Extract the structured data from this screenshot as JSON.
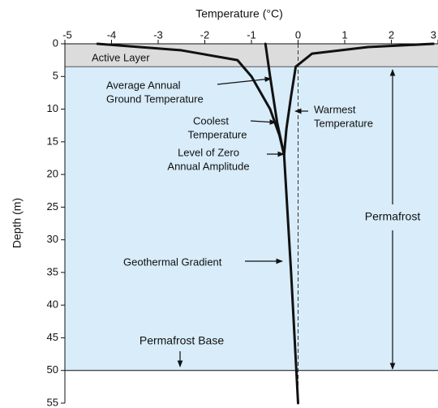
{
  "chart_data": {
    "type": "line",
    "title": "Temperature (°C)",
    "y_label": "Depth (m)",
    "xlim": [
      -5,
      3
    ],
    "xticks": [
      -5,
      -4,
      -3,
      -2,
      -1,
      0,
      1,
      2,
      3
    ],
    "ylim": [
      0,
      55
    ],
    "yticks": [
      0,
      5,
      10,
      15,
      20,
      25,
      30,
      35,
      40,
      45,
      50,
      55
    ],
    "y_inverted": true,
    "active_layer_bottom": 3.5,
    "permafrost_bottom": 50,
    "series": [
      {
        "color": "#111111",
        "x": [
          2.9,
          1.5,
          0.3,
          -0.05,
          -0.15,
          -0.25,
          -0.3
        ],
        "y": [
          0,
          0.5,
          1.5,
          3.5,
          8,
          13,
          17
        ]
      },
      {
        "color": "#111111",
        "x": [
          -4.3,
          -2.5,
          -1.3,
          -1.0,
          -0.6,
          -0.4,
          -0.3
        ],
        "y": [
          0,
          1,
          2.5,
          5,
          10,
          14,
          17
        ]
      },
      {
        "color": "#111111",
        "x": [
          -0.7,
          -0.6,
          -0.45,
          -0.3
        ],
        "y": [
          0,
          5,
          12,
          17
        ]
      },
      {
        "color": "#111111",
        "x": [
          -0.3,
          -0.15,
          0
        ],
        "y": [
          17,
          35,
          55
        ]
      }
    ],
    "annotations": {
      "active_layer": "Active Layer",
      "average": [
        "Average Annual",
        "Ground Temperature"
      ],
      "coolest": [
        "Coolest",
        "Temperature"
      ],
      "warmest": [
        "Warmest",
        "Temperature"
      ],
      "zero_amplitude": [
        "Level of Zero",
        "Annual Amplitude"
      ],
      "gradient": "Geothermal Gradient",
      "permafrost": "Permafrost",
      "base": "Permafrost Base"
    }
  }
}
